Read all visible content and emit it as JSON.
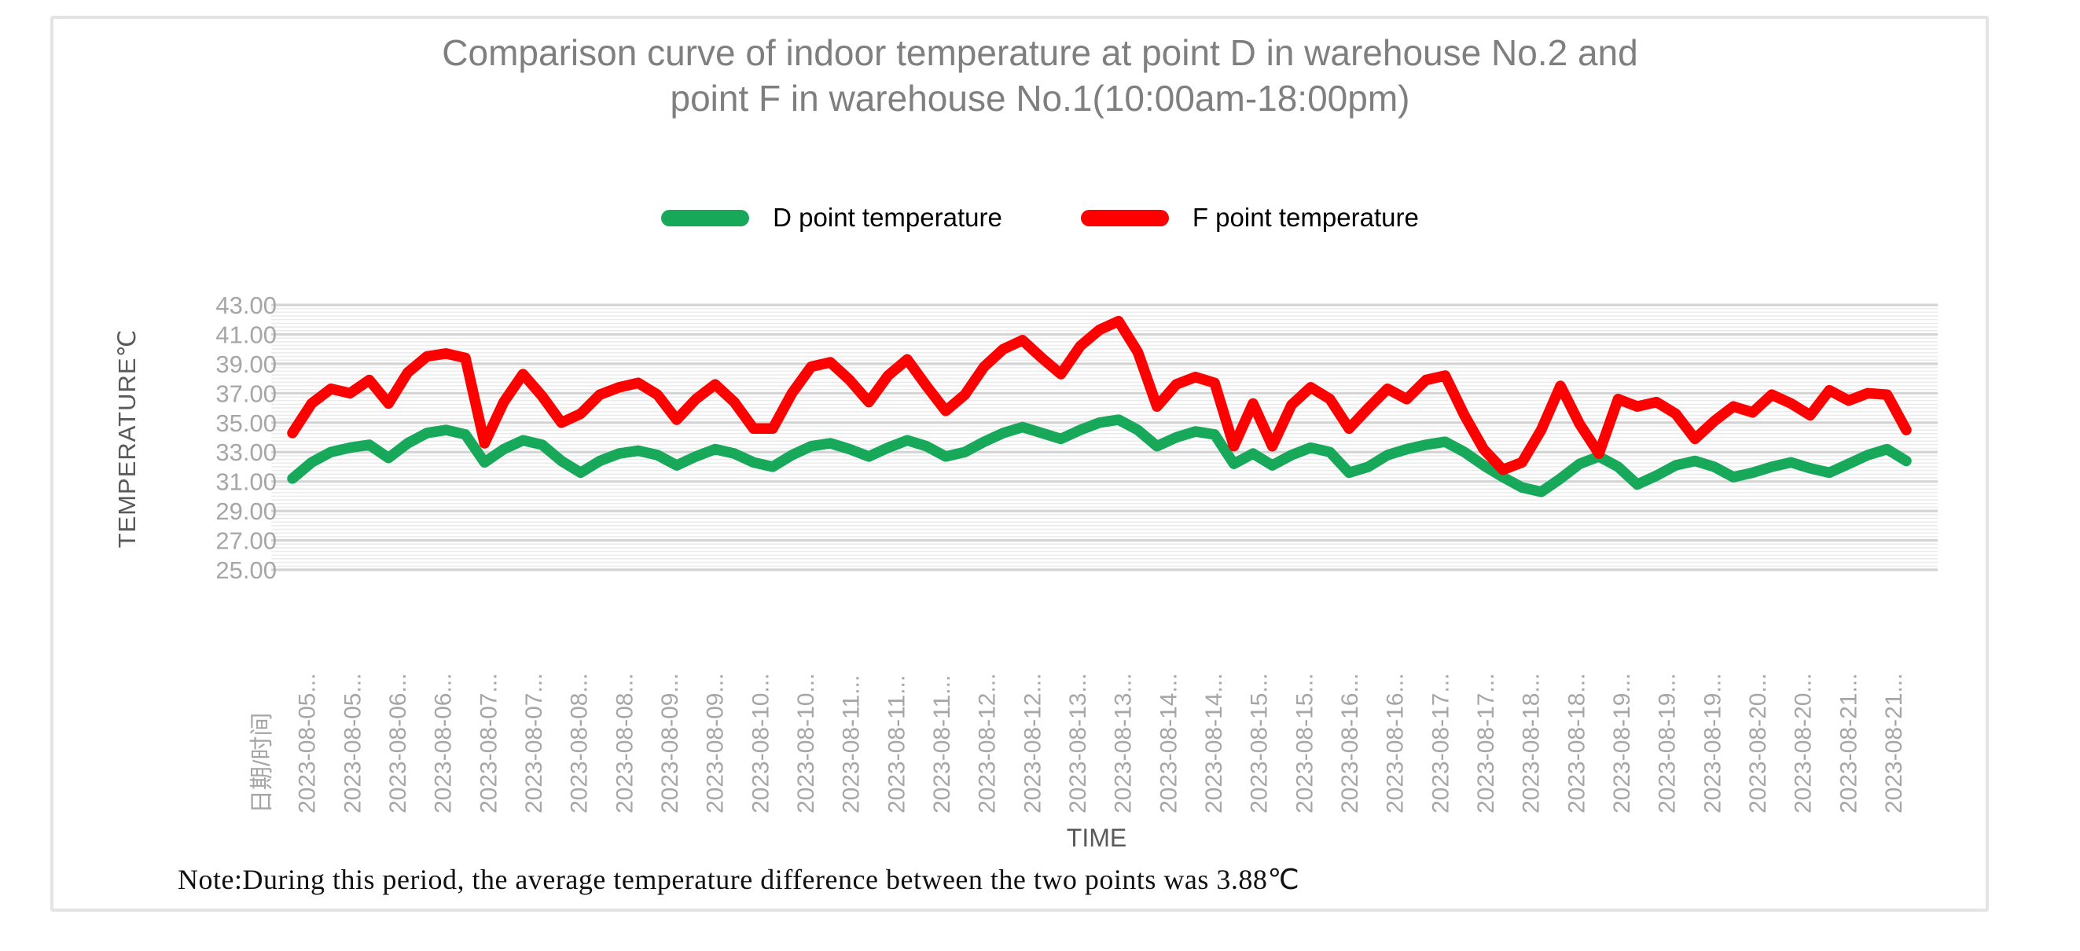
{
  "chart_data": {
    "type": "line",
    "title": "Comparison curve of indoor temperature at point D in warehouse No.2 and point F in warehouse No.1(10:00am-18:00pm)",
    "title_lines": {
      "line1": "Comparison curve of indoor temperature at point D in warehouse No.2 and",
      "line2": "point F in warehouse No.1(10:00am-18:00pm)"
    },
    "xlabel": "TIME",
    "ylabel": "TEMPERATURE℃",
    "ylim": [
      25,
      43
    ],
    "ytick_step": 2,
    "yticks": [
      "43.00",
      "41.00",
      "39.00",
      "37.00",
      "35.00",
      "33.00",
      "31.00",
      "29.00",
      "27.00",
      "25.00"
    ],
    "grid": "horizontal major every 2°C with dense minor lines, no vertical grid",
    "legend_position": "top-center",
    "x_axis_first_label": "日期/时间",
    "x_labels": [
      "2023-08-05...",
      "2023-08-05...",
      "2023-08-06...",
      "2023-08-06...",
      "2023-08-07...",
      "2023-08-07...",
      "2023-08-08...",
      "2023-08-08...",
      "2023-08-09...",
      "2023-08-09...",
      "2023-08-10...",
      "2023-08-10...",
      "2023-08-11...",
      "2023-08-11...",
      "2023-08-11...",
      "2023-08-12...",
      "2023-08-12...",
      "2023-08-13...",
      "2023-08-13...",
      "2023-08-14...",
      "2023-08-14...",
      "2023-08-15...",
      "2023-08-15...",
      "2023-08-16...",
      "2023-08-16...",
      "2023-08-17...",
      "2023-08-17...",
      "2023-08-18...",
      "2023-08-18...",
      "2023-08-19...",
      "2023-08-19...",
      "2023-08-19...",
      "2023-08-20...",
      "2023-08-20...",
      "2023-08-21...",
      "2023-08-21..."
    ],
    "date_range": "2023-08-05 to 2023-08-21",
    "series": [
      {
        "name": "D point temperature",
        "color": "#17a85a",
        "values": [
          31.2,
          32.3,
          33.0,
          33.3,
          33.5,
          32.6,
          33.6,
          34.3,
          34.5,
          34.2,
          32.3,
          33.2,
          33.8,
          33.5,
          32.4,
          31.6,
          32.4,
          32.9,
          33.1,
          32.8,
          32.1,
          32.7,
          33.2,
          32.9,
          32.3,
          32.0,
          32.8,
          33.4,
          33.6,
          33.2,
          32.7,
          33.3,
          33.8,
          33.4,
          32.7,
          33.0,
          33.7,
          34.3,
          34.7,
          34.3,
          33.9,
          34.5,
          35.0,
          35.2,
          34.5,
          33.4,
          34.0,
          34.4,
          34.2,
          32.2,
          32.9,
          32.1,
          32.8,
          33.3,
          33.0,
          31.6,
          32.0,
          32.8,
          33.2,
          33.5,
          33.7,
          33.0,
          32.1,
          31.3,
          30.6,
          30.3,
          31.2,
          32.2,
          32.7,
          32.0,
          30.8,
          31.4,
          32.1,
          32.4,
          32.0,
          31.3,
          31.6,
          32.0,
          32.3,
          31.9,
          31.6,
          32.2,
          32.8,
          33.2,
          32.4
        ]
      },
      {
        "name": "F point temperature",
        "color": "#fe0000",
        "values": [
          34.3,
          36.3,
          37.3,
          37.0,
          37.9,
          36.3,
          38.4,
          39.5,
          39.7,
          39.4,
          33.6,
          36.4,
          38.3,
          36.8,
          35.0,
          35.6,
          36.9,
          37.4,
          37.7,
          36.9,
          35.2,
          36.6,
          37.6,
          36.4,
          34.6,
          34.6,
          37.0,
          38.8,
          39.1,
          37.9,
          36.4,
          38.2,
          39.3,
          37.5,
          35.8,
          36.9,
          38.8,
          40.0,
          40.6,
          39.4,
          38.3,
          40.2,
          41.3,
          41.9,
          39.8,
          36.1,
          37.6,
          38.1,
          37.7,
          33.4,
          36.3,
          33.4,
          36.2,
          37.4,
          36.6,
          34.6,
          36.0,
          37.3,
          36.6,
          37.9,
          38.2,
          35.5,
          33.2,
          31.8,
          32.3,
          34.5,
          37.5,
          34.9,
          32.9,
          36.6,
          36.1,
          36.4,
          35.6,
          33.9,
          35.1,
          36.1,
          35.7,
          36.9,
          36.3,
          35.5,
          37.2,
          36.5,
          37.0,
          36.9,
          34.5
        ]
      }
    ],
    "note": "Note:During this period, the average temperature difference between the two points was 3.88℃",
    "avg_temp_difference_c": 3.88,
    "colors": {
      "d_series": "#17a85a",
      "f_series": "#fe0000",
      "grid_major": "#d4d4d4",
      "grid_minor": "#ececec",
      "tick_text": "#a6a6a6",
      "axis_title_text": "#595959",
      "title_text": "#7f7f7f",
      "legend_text": "#000000",
      "card_border": "#e4e4e4"
    }
  }
}
